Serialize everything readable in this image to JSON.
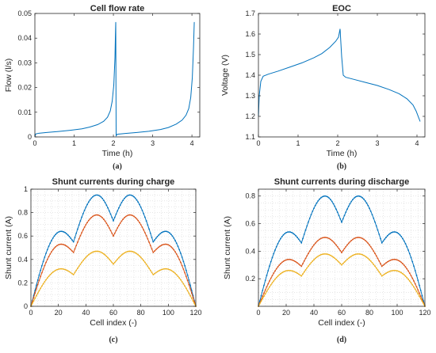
{
  "chart_data": [
    {
      "id": "a",
      "type": "line",
      "title": "Cell flow rate",
      "xlabel": "Time (h)",
      "ylabel": "Flow (l/s)",
      "subcaption": "(a)",
      "xlim": [
        0,
        4.2
      ],
      "ylim": [
        0,
        0.05
      ],
      "xticks": [
        0,
        1,
        2,
        3,
        4
      ],
      "yticks": [
        0,
        0.01,
        0.02,
        0.03,
        0.04,
        0.05
      ],
      "xtick_labels": [
        "0",
        "1",
        "2",
        "3",
        "4"
      ],
      "ytick_labels": [
        "0",
        "0.01",
        "0.02",
        "0.03",
        "0.04",
        "0.05"
      ],
      "grid": false,
      "colors": [
        "#0072bd"
      ],
      "series": [
        {
          "x": [
            0,
            0.02,
            0.1,
            0.3,
            0.6,
            0.9,
            1.2,
            1.4,
            1.6,
            1.75,
            1.85,
            1.92,
            1.97,
            2.01,
            2.04,
            2.05,
            2.06,
            2.07,
            2.1,
            2.3,
            2.6,
            2.9,
            3.2,
            3.4,
            3.6,
            3.75,
            3.85,
            3.92,
            3.97,
            4.01,
            4.04,
            4.06
          ],
          "y": [
            0,
            0.0012,
            0.0015,
            0.0018,
            0.0022,
            0.0027,
            0.0033,
            0.004,
            0.005,
            0.0063,
            0.008,
            0.0105,
            0.0145,
            0.021,
            0.032,
            0.04,
            0.0465,
            0.0005,
            0.0011,
            0.0014,
            0.0018,
            0.0023,
            0.003,
            0.0038,
            0.0052,
            0.0068,
            0.0088,
            0.0115,
            0.016,
            0.024,
            0.036,
            0.0465
          ]
        }
      ]
    },
    {
      "id": "b",
      "type": "line",
      "title": "EOC",
      "xlabel": "Time (h)",
      "ylabel": "Voltage (V)",
      "subcaption": "(b)",
      "xlim": [
        0,
        4.2
      ],
      "ylim": [
        1.1,
        1.7
      ],
      "xticks": [
        0,
        1,
        2,
        3,
        4
      ],
      "yticks": [
        1.1,
        1.2,
        1.3,
        1.4,
        1.5,
        1.6,
        1.7
      ],
      "xtick_labels": [
        "0",
        "1",
        "2",
        "3",
        "4"
      ],
      "ytick_labels": [
        "1.1",
        "1.2",
        "1.3",
        "1.4",
        "1.5",
        "1.6",
        "1.7"
      ],
      "grid": false,
      "colors": [
        "#0072bd"
      ],
      "series": [
        {
          "x": [
            0,
            0.02,
            0.06,
            0.12,
            0.25,
            0.5,
            0.8,
            1.1,
            1.4,
            1.6,
            1.8,
            1.95,
            2.02,
            2.06,
            2.1,
            2.14,
            2.2,
            2.4,
            2.7,
            3.0,
            3.3,
            3.55,
            3.75,
            3.9,
            3.98,
            4.04,
            4.08
          ],
          "y": [
            1.2,
            1.3,
            1.37,
            1.395,
            1.405,
            1.42,
            1.44,
            1.46,
            1.485,
            1.505,
            1.535,
            1.565,
            1.585,
            1.625,
            1.49,
            1.4,
            1.39,
            1.38,
            1.365,
            1.35,
            1.33,
            1.31,
            1.285,
            1.255,
            1.225,
            1.195,
            1.175
          ]
        }
      ]
    },
    {
      "id": "c",
      "type": "line",
      "title": "Shunt currents during charge",
      "xlabel": "Cell index (-)",
      "ylabel": "Shunt current (A)",
      "subcaption": "(c)",
      "xlim": [
        0,
        120
      ],
      "ylim": [
        0,
        1
      ],
      "xticks": [
        0,
        20,
        40,
        60,
        80,
        100,
        120
      ],
      "yticks": [
        0,
        0.2,
        0.4,
        0.6,
        0.8,
        1
      ],
      "xtick_labels": [
        "0",
        "20",
        "40",
        "60",
        "80",
        "100",
        "120"
      ],
      "ytick_labels": [
        "0",
        "0.2",
        "0.4",
        "0.6",
        "0.8",
        "1"
      ],
      "grid": true,
      "colors": [
        "#0072bd",
        "#d95319",
        "#edb120"
      ],
      "series": [
        {
          "color": "#0072bd",
          "anchors": [
            [
              0,
              0
            ],
            [
              22,
              0.64
            ],
            [
              31,
              0.55
            ],
            [
              48,
              0.95
            ],
            [
              60,
              0.73
            ],
            [
              72,
              0.95
            ],
            [
              89,
              0.55
            ],
            [
              98,
              0.64
            ],
            [
              120,
              0
            ]
          ]
        },
        {
          "color": "#d95319",
          "anchors": [
            [
              0,
              0
            ],
            [
              22,
              0.53
            ],
            [
              31,
              0.46
            ],
            [
              48,
              0.78
            ],
            [
              60,
              0.6
            ],
            [
              72,
              0.78
            ],
            [
              89,
              0.46
            ],
            [
              98,
              0.53
            ],
            [
              120,
              0
            ]
          ]
        },
        {
          "color": "#edb120",
          "anchors": [
            [
              0,
              0
            ],
            [
              22,
              0.32
            ],
            [
              31,
              0.27
            ],
            [
              48,
              0.47
            ],
            [
              60,
              0.36
            ],
            [
              72,
              0.47
            ],
            [
              89,
              0.27
            ],
            [
              98,
              0.32
            ],
            [
              120,
              0
            ]
          ]
        }
      ]
    },
    {
      "id": "d",
      "type": "line",
      "title": "Shunt currents during discharge",
      "xlabel": "Cell index (-)",
      "ylabel": "Shunt current (A)",
      "subcaption": "(d)",
      "xlim": [
        0,
        120
      ],
      "ylim": [
        0,
        0.85
      ],
      "xticks": [
        0,
        20,
        40,
        60,
        80,
        100,
        120
      ],
      "yticks": [
        0.2,
        0.4,
        0.6,
        0.8
      ],
      "xtick_labels": [
        "0",
        "20",
        "40",
        "60",
        "80",
        "100",
        "120"
      ],
      "ytick_labels": [
        "0.2",
        "0.4",
        "0.6",
        "0.8"
      ],
      "grid": true,
      "colors": [
        "#0072bd",
        "#d95319",
        "#edb120"
      ],
      "series": [
        {
          "color": "#0072bd",
          "anchors": [
            [
              0,
              0
            ],
            [
              22,
              0.54
            ],
            [
              31,
              0.46
            ],
            [
              48,
              0.8
            ],
            [
              60,
              0.61
            ],
            [
              72,
              0.8
            ],
            [
              89,
              0.46
            ],
            [
              98,
              0.54
            ],
            [
              120,
              0
            ]
          ]
        },
        {
          "color": "#d95319",
          "anchors": [
            [
              0,
              0
            ],
            [
              22,
              0.34
            ],
            [
              31,
              0.29
            ],
            [
              48,
              0.5
            ],
            [
              60,
              0.39
            ],
            [
              72,
              0.5
            ],
            [
              89,
              0.29
            ],
            [
              98,
              0.34
            ],
            [
              120,
              0
            ]
          ]
        },
        {
          "color": "#edb120",
          "anchors": [
            [
              0,
              0
            ],
            [
              22,
              0.26
            ],
            [
              31,
              0.22
            ],
            [
              48,
              0.38
            ],
            [
              60,
              0.3
            ],
            [
              72,
              0.38
            ],
            [
              89,
              0.22
            ],
            [
              98,
              0.26
            ],
            [
              120,
              0
            ]
          ]
        }
      ]
    }
  ]
}
